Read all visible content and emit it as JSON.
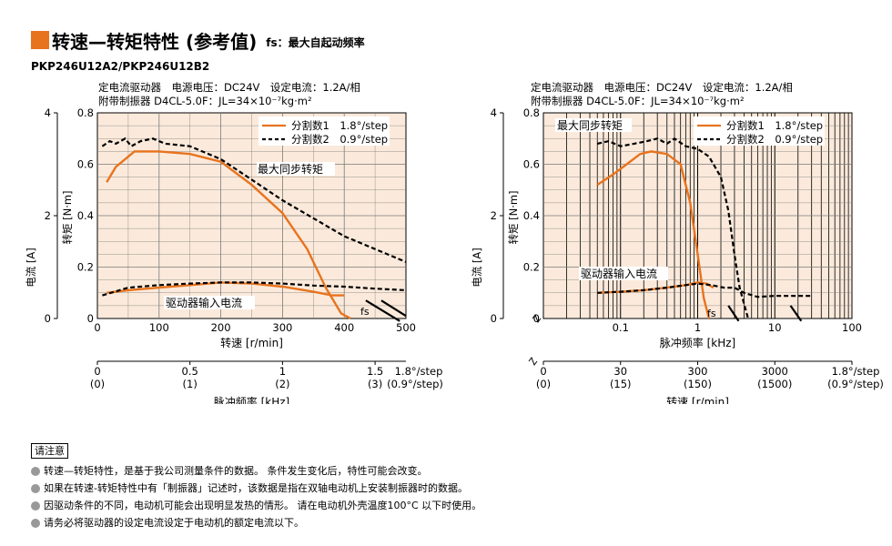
{
  "header": {
    "title": "转速—转矩特性 (参考值)",
    "subtitle": "fs：最大自起动频率",
    "model": "PKP246U12A2/PKP246U12B2",
    "accent_color": "#e8731e"
  },
  "notes": {
    "title": "请注意",
    "items": [
      "转速—转矩特性，是基于我公司测量条件的数据。 条件发生变化后，特性可能会改变。",
      "如果在转速-转矩特性中有「制振器」记述时，该数据是指在双轴电动机上安装制振器时的数据。",
      "因驱动条件的不同，电动机可能会出现明显发热的情形。 请在电动机外壳温度100°C 以下时使用。",
      "请务必将驱动器的设定电流设定于电动机的额定电流以下。"
    ]
  },
  "chart_data": [
    {
      "type": "line",
      "conditions": [
        "定电流驱动器　电源电压：DC24V　设定电流：1.2A/相",
        "附带制振器 D4CL-5.0F：JL=34×10⁻⁷kg·m²"
      ],
      "xlabel": "转速 [r/min]",
      "ylabel": "转矩 [N·m]",
      "ylabel2": "电流 [A]",
      "xlim": [
        0,
        500
      ],
      "ylim": [
        0,
        0.8
      ],
      "y2lim": [
        0,
        4
      ],
      "x_ticks": [
        "0",
        "100",
        "200",
        "300",
        "400",
        "500"
      ],
      "y_ticks": [
        "0",
        "0.2",
        "0.4",
        "0.6",
        "0.8"
      ],
      "y2_ticks": [
        "0",
        "2",
        "4"
      ],
      "secondary_axis": {
        "label": "脉冲频率 [kHz]",
        "ticks": [
          {
            "at": 0,
            "top": "0",
            "bottom": "(0)"
          },
          {
            "at": 150,
            "top": "0.5",
            "bottom": "(1)"
          },
          {
            "at": 300,
            "top": "1",
            "bottom": "(2)"
          },
          {
            "at": 450,
            "top": "1.5",
            "bottom": "(3)"
          }
        ],
        "unit_top": "1.8°/step",
        "unit_bottom": "(0.9°/step)"
      },
      "annotations": {
        "max_torque": "最大同步转矩",
        "driver_current": "驱动器输入电流",
        "fs": "fs"
      },
      "series": [
        {
          "name": "分割数1　1.8°/step",
          "style": "solid",
          "color": "#e8731e",
          "x": [
            15,
            30,
            45,
            60,
            100,
            150,
            200,
            250,
            300,
            340,
            370,
            395,
            410
          ],
          "y": [
            0.53,
            0.59,
            0.62,
            0.65,
            0.65,
            0.64,
            0.61,
            0.52,
            0.41,
            0.27,
            0.12,
            0.02,
            0.0
          ]
        },
        {
          "name": "分割数2　0.9°/step",
          "style": "dashed",
          "color": "#000000",
          "x": [
            8,
            20,
            30,
            45,
            55,
            70,
            90,
            110,
            150,
            200,
            250,
            300,
            350,
            400,
            450,
            500
          ],
          "y": [
            0.67,
            0.69,
            0.68,
            0.7,
            0.67,
            0.69,
            0.7,
            0.68,
            0.67,
            0.62,
            0.54,
            0.46,
            0.39,
            0.32,
            0.27,
            0.22
          ]
        },
        {
          "name": "驱动器输入电流 分割数1",
          "axis": "current",
          "style": "solid",
          "color": "#e8731e",
          "x": [
            15,
            50,
            100,
            150,
            200,
            250,
            300,
            350,
            380,
            400
          ],
          "y": [
            0.5,
            0.55,
            0.6,
            0.65,
            0.7,
            0.68,
            0.62,
            0.52,
            0.45,
            0.45
          ]
        },
        {
          "name": "驱动器输入电流 分割数2",
          "axis": "current",
          "style": "dashed",
          "color": "#000000",
          "x": [
            8,
            50,
            100,
            150,
            200,
            250,
            300,
            350,
            400,
            450,
            500
          ],
          "y": [
            0.45,
            0.6,
            0.65,
            0.68,
            0.7,
            0.7,
            0.68,
            0.64,
            0.62,
            0.58,
            0.55
          ]
        },
        {
          "name": "fs 分割数1",
          "axis": "current",
          "style": "solid",
          "color": "#000000",
          "x": [
            435,
            490
          ],
          "y": [
            0.35,
            -0.05
          ]
        },
        {
          "name": "fs 分割数2",
          "axis": "current",
          "style": "solid",
          "color": "#000000",
          "x": [
            460,
            500
          ],
          "y": [
            0.35,
            0.05
          ]
        }
      ],
      "legend": "top-right",
      "grid": true,
      "background": "#fbeadb"
    },
    {
      "type": "line",
      "x_scale": "log",
      "conditions": [
        "定电流驱动器　电源电压：DC24V　设定电流：1.2A/相",
        "附带制振器 D4CL-5.0F：JL=34×10⁻⁷kg·m²"
      ],
      "xlabel": "脉冲频率 [kHz]",
      "ylabel": "转矩 [N·m]",
      "ylabel2": "电流 [A]",
      "xlim": [
        0.01,
        100
      ],
      "ylim": [
        0,
        0.8
      ],
      "y2lim": [
        0,
        4
      ],
      "x_ticks": [
        "0.1",
        "1",
        "10",
        "100"
      ],
      "y_ticks": [
        "0",
        "0.2",
        "0.4",
        "0.6",
        "0.8"
      ],
      "y2_ticks": [
        "0",
        "2",
        "4"
      ],
      "secondary_axis": {
        "label": "转速 [r/min]",
        "ticks": [
          {
            "at": 0.01,
            "top": "0",
            "bottom": "(0)"
          },
          {
            "at": 0.1,
            "top": "30",
            "bottom": "(15)"
          },
          {
            "at": 1,
            "top": "300",
            "bottom": "(150)"
          },
          {
            "at": 10,
            "top": "3000",
            "bottom": "(1500)"
          },
          {
            "at": 100,
            "top": "1.8°/step",
            "bottom": "(0.9°/step)"
          }
        ]
      },
      "annotations": {
        "max_torque": "最大同步转矩",
        "driver_current": "驱动器输入电流",
        "fs": "fs"
      },
      "series": [
        {
          "name": "分割数1　1.8°/step",
          "style": "solid",
          "color": "#e8731e",
          "x": [
            0.05,
            0.08,
            0.12,
            0.18,
            0.25,
            0.4,
            0.6,
            0.8,
            1.0,
            1.2,
            1.4
          ],
          "y": [
            0.52,
            0.56,
            0.6,
            0.64,
            0.65,
            0.64,
            0.6,
            0.45,
            0.25,
            0.08,
            0.0
          ]
        },
        {
          "name": "分割数2　0.9°/step",
          "style": "dashed",
          "color": "#000000",
          "x": [
            0.05,
            0.07,
            0.1,
            0.15,
            0.22,
            0.3,
            0.4,
            0.5,
            0.7,
            1.0,
            1.4,
            2.0,
            2.5,
            3.0,
            3.5,
            4.5
          ],
          "y": [
            0.68,
            0.69,
            0.67,
            0.68,
            0.69,
            0.7,
            0.68,
            0.7,
            0.67,
            0.66,
            0.63,
            0.55,
            0.42,
            0.25,
            0.12,
            0.0
          ]
        },
        {
          "name": "驱动器输入电流 分割数1",
          "axis": "current",
          "style": "solid",
          "color": "#e8731e",
          "x": [
            0.05,
            0.1,
            0.2,
            0.4,
            0.7,
            1.0,
            1.3,
            1.6
          ],
          "y": [
            0.5,
            0.52,
            0.55,
            0.6,
            0.65,
            0.7,
            0.68,
            0.6
          ]
        },
        {
          "name": "驱动器输入电流 分割数2",
          "axis": "current",
          "style": "dashed",
          "color": "#000000",
          "x": [
            0.05,
            0.1,
            0.2,
            0.4,
            0.7,
            1.0,
            1.5,
            2.2,
            3.0,
            4.0,
            6.0,
            10,
            20,
            30
          ],
          "y": [
            0.5,
            0.52,
            0.55,
            0.6,
            0.65,
            0.68,
            0.65,
            0.6,
            0.6,
            0.5,
            0.42,
            0.44,
            0.44,
            0.44
          ]
        },
        {
          "name": "fs 分割数1",
          "axis": "current",
          "style": "solid",
          "color": "#000000",
          "x": [
            2.5,
            3.4
          ],
          "y": [
            0.25,
            -0.05
          ]
        },
        {
          "name": "fs 分割数2",
          "axis": "current",
          "style": "solid",
          "color": "#000000",
          "x": [
            16,
            22
          ],
          "y": [
            0.25,
            -0.05
          ]
        }
      ],
      "legend": "top-right",
      "grid": true,
      "background": "#fbeadb"
    }
  ]
}
